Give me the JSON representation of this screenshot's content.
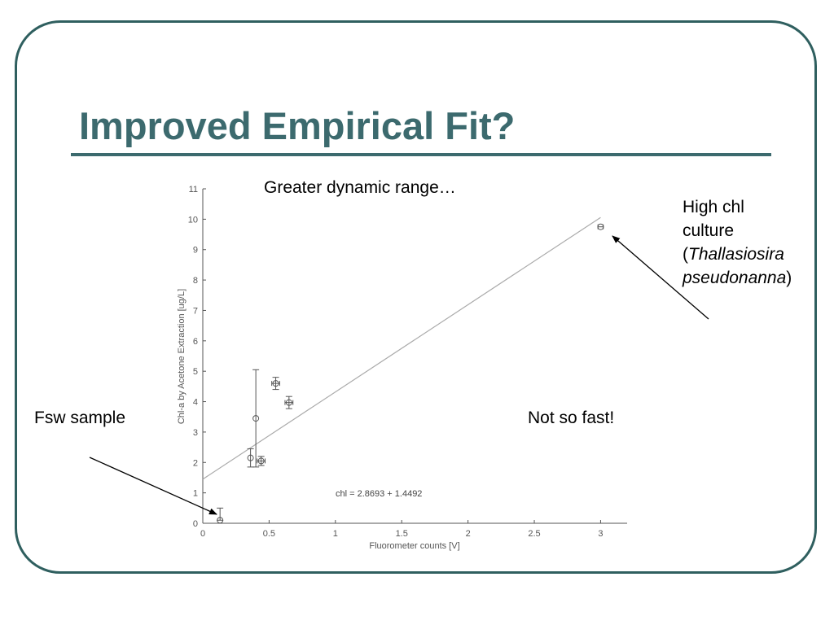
{
  "slide": {
    "title": "Improved Empirical Fit?",
    "annotations": {
      "dynamic_range": "Greater dynamic range…",
      "fsw_sample": "Fsw sample",
      "not_so_fast": "Not so fast!",
      "high_chl_line1": "High chl",
      "high_chl_line2": "culture",
      "high_chl_paren_open": "(",
      "high_chl_species_genus": "Thallasiosira",
      "high_chl_species_epithet": "pseudonanna",
      "high_chl_paren_close": ")"
    },
    "colors": {
      "frame": "#2f5f5f",
      "title": "#3c6a6e",
      "chart_ink": "#555555",
      "fit_line": "#aaaaaa"
    }
  },
  "chart_data": {
    "type": "scatter",
    "xlabel": "Fluorometer counts [V]",
    "ylabel": "Chl-a by Acetone Extraction [ug/L]",
    "xlim": [
      0,
      3.2
    ],
    "ylim": [
      0,
      11
    ],
    "xticks": [
      0,
      0.5,
      1,
      1.5,
      2,
      2.5,
      3
    ],
    "xtick_labels": [
      "0",
      "0.5",
      "1",
      "1.5",
      "2",
      "2.5",
      "3"
    ],
    "yticks": [
      0,
      1,
      2,
      3,
      4,
      5,
      6,
      7,
      8,
      9,
      10,
      11
    ],
    "ytick_labels": [
      "0",
      "1",
      "2",
      "3",
      "4",
      "5",
      "6",
      "7",
      "8",
      "9",
      "10",
      "11"
    ],
    "grid": false,
    "points": [
      {
        "x": 0.13,
        "y": 0.1,
        "y_low": 0.1,
        "y_high": 0.5,
        "x_err": 0
      },
      {
        "x": 0.36,
        "y": 2.15,
        "y_low": 1.85,
        "y_high": 2.45,
        "x_err": 0
      },
      {
        "x": 0.4,
        "y": 3.45,
        "y_low": 1.85,
        "y_high": 5.05,
        "x_err": 0
      },
      {
        "x": 0.44,
        "y": 2.05,
        "y_low": 1.9,
        "y_high": 2.2,
        "x_err": 0.03
      },
      {
        "x": 0.55,
        "y": 4.6,
        "y_low": 4.4,
        "y_high": 4.8,
        "x_err": 0.03
      },
      {
        "x": 0.65,
        "y": 3.97,
        "y_low": 3.77,
        "y_high": 4.17,
        "x_err": 0.03
      },
      {
        "x": 3.0,
        "y": 9.75,
        "y_low": 9.75,
        "y_high": 9.75,
        "x_err": 0.02
      }
    ],
    "fit": {
      "slope": 2.8693,
      "intercept": 1.4492,
      "x_range": [
        0,
        3.0
      ],
      "label": "chl = 2.8693 + 1.4492"
    }
  }
}
